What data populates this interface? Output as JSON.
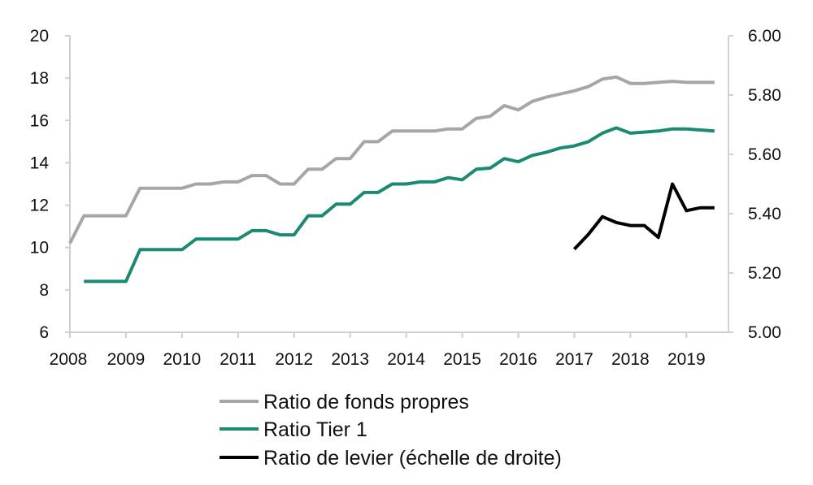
{
  "chart_data": {
    "type": "line",
    "title": "",
    "xlabel": "",
    "ylabel": "",
    "y2label": "",
    "xlim": [
      2008.0,
      2019.75
    ],
    "ylim": [
      6,
      20
    ],
    "y2lim": [
      5.0,
      6.0
    ],
    "x_ticks": [
      "2008",
      "2009",
      "2010",
      "2011",
      "2012",
      "2013",
      "2014",
      "2015",
      "2016",
      "2017",
      "2018",
      "2019"
    ],
    "y_ticks": [
      "6",
      "8",
      "10",
      "12",
      "14",
      "16",
      "18",
      "20"
    ],
    "y2_ticks": [
      "5.00",
      "5.20",
      "5.40",
      "5.60",
      "5.80",
      "6.00"
    ],
    "grid": false,
    "legend_position": "bottom",
    "series": [
      {
        "name": "Ratio de fonds propres",
        "axis": "left",
        "color": "#a6a6a6",
        "x": [
          2008.0,
          2008.25,
          2008.5,
          2008.75,
          2009.0,
          2009.25,
          2009.5,
          2009.75,
          2010.0,
          2010.25,
          2010.5,
          2010.75,
          2011.0,
          2011.25,
          2011.5,
          2011.75,
          2012.0,
          2012.25,
          2012.5,
          2012.75,
          2013.0,
          2013.25,
          2013.5,
          2013.75,
          2014.0,
          2014.25,
          2014.5,
          2014.75,
          2015.0,
          2015.25,
          2015.5,
          2015.75,
          2016.0,
          2016.25,
          2016.5,
          2016.75,
          2017.0,
          2017.25,
          2017.5,
          2017.75,
          2018.0,
          2018.25,
          2018.5,
          2018.75,
          2019.0,
          2019.25,
          2019.5
        ],
        "y": [
          10.2,
          11.5,
          11.5,
          11.5,
          11.5,
          12.8,
          12.8,
          12.8,
          12.8,
          13.0,
          13.0,
          13.1,
          13.1,
          13.4,
          13.4,
          13.0,
          13.0,
          13.7,
          13.7,
          14.2,
          14.2,
          15.0,
          15.0,
          15.5,
          15.5,
          15.5,
          15.5,
          15.6,
          15.6,
          16.1,
          16.2,
          16.7,
          16.5,
          16.9,
          17.1,
          17.25,
          17.4,
          17.6,
          17.95,
          18.05,
          17.75,
          17.75,
          17.8,
          17.85,
          17.8,
          17.8,
          17.8
        ]
      },
      {
        "name": "Ratio Tier 1",
        "axis": "left",
        "color": "#1b8a73",
        "x": [
          2008.25,
          2008.5,
          2008.75,
          2009.0,
          2009.25,
          2009.5,
          2009.75,
          2010.0,
          2010.25,
          2010.5,
          2010.75,
          2011.0,
          2011.25,
          2011.5,
          2011.75,
          2012.0,
          2012.25,
          2012.5,
          2012.75,
          2013.0,
          2013.25,
          2013.5,
          2013.75,
          2014.0,
          2014.25,
          2014.5,
          2014.75,
          2015.0,
          2015.25,
          2015.5,
          2015.75,
          2016.0,
          2016.25,
          2016.5,
          2016.75,
          2017.0,
          2017.25,
          2017.5,
          2017.75,
          2018.0,
          2018.25,
          2018.5,
          2018.75,
          2019.0,
          2019.25,
          2019.5
        ],
        "y": [
          8.4,
          8.4,
          8.4,
          8.4,
          9.9,
          9.9,
          9.9,
          9.9,
          10.4,
          10.4,
          10.4,
          10.4,
          10.8,
          10.8,
          10.6,
          10.6,
          11.5,
          11.5,
          12.05,
          12.05,
          12.6,
          12.6,
          13.0,
          13.0,
          13.1,
          13.1,
          13.3,
          13.2,
          13.7,
          13.75,
          14.2,
          14.05,
          14.35,
          14.5,
          14.7,
          14.8,
          15.0,
          15.4,
          15.65,
          15.4,
          15.45,
          15.5,
          15.6,
          15.6,
          15.55,
          15.5
        ]
      },
      {
        "name": "Ratio de levier (échelle de droite)",
        "axis": "right",
        "color": "#000000",
        "x": [
          2017.0,
          2017.25,
          2017.5,
          2017.75,
          2018.0,
          2018.25,
          2018.5,
          2018.75,
          2019.0,
          2019.25,
          2019.5
        ],
        "y": [
          5.28,
          5.33,
          5.39,
          5.37,
          5.36,
          5.36,
          5.32,
          5.5,
          5.41,
          5.42,
          5.42
        ]
      }
    ]
  }
}
